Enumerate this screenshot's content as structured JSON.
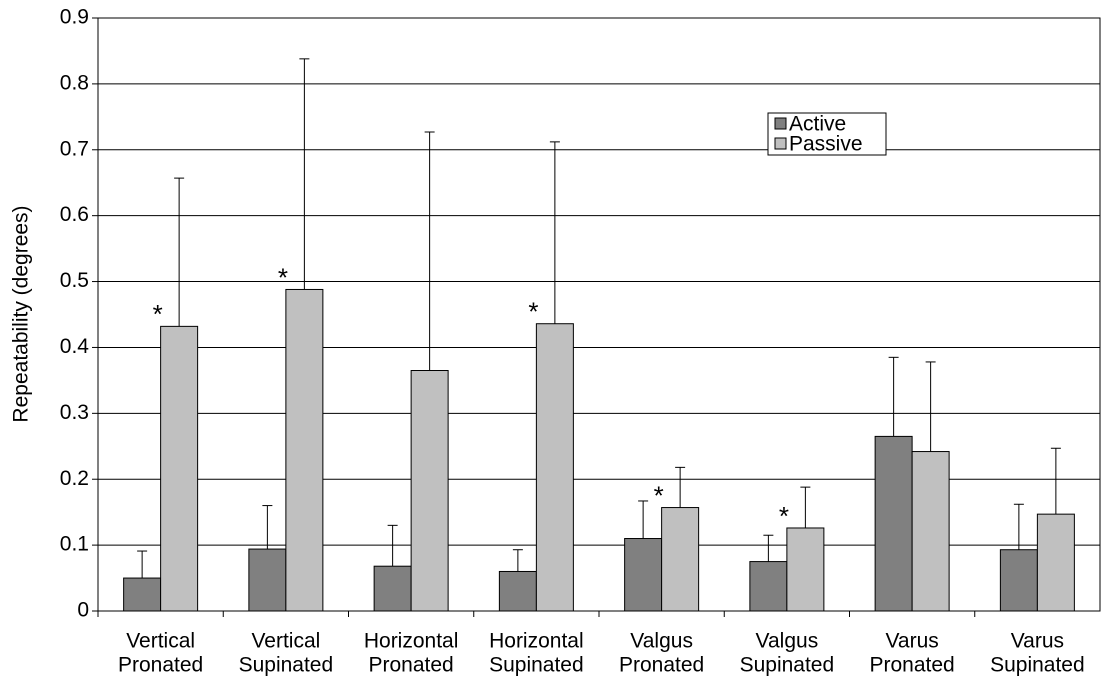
{
  "chart_data": {
    "type": "bar",
    "y_label": "Repeatability (degrees)",
    "categories": [
      [
        "Vertical",
        "Pronated"
      ],
      [
        "Vertical",
        "Supinated"
      ],
      [
        "Horizontal",
        "Pronated"
      ],
      [
        "Horizontal",
        "Supinated"
      ],
      [
        "Valgus",
        "Pronated"
      ],
      [
        "Valgus",
        "Supinated"
      ],
      [
        "Varus",
        "Pronated"
      ],
      [
        "Varus",
        "Supinated"
      ]
    ],
    "series": [
      {
        "name": "Active",
        "color": "#808080",
        "values": [
          0.05,
          0.094,
          0.068,
          0.06,
          0.11,
          0.075,
          0.265,
          0.093
        ],
        "errors": [
          0.041,
          0.066,
          0.062,
          0.033,
          0.057,
          0.04,
          0.12,
          0.069
        ]
      },
      {
        "name": "Passive",
        "color": "#c0c0c0",
        "values": [
          0.432,
          0.488,
          0.365,
          0.436,
          0.157,
          0.126,
          0.242,
          0.147
        ],
        "errors": [
          0.225,
          0.35,
          0.362,
          0.276,
          0.061,
          0.062,
          0.136,
          0.1
        ]
      }
    ],
    "annotations": [
      {
        "text": "*",
        "category": 0
      },
      {
        "text": "*",
        "category": 1
      },
      {
        "text": "*",
        "category": 3
      },
      {
        "text": "*",
        "category": 4
      },
      {
        "text": "*",
        "category": 5
      }
    ],
    "ylim": [
      0,
      0.9
    ],
    "yticks": [
      0,
      0.1,
      0.2,
      0.3,
      0.4,
      0.5,
      0.6,
      0.7,
      0.8,
      0.9
    ],
    "grid": true,
    "legend_position": "upper right"
  }
}
